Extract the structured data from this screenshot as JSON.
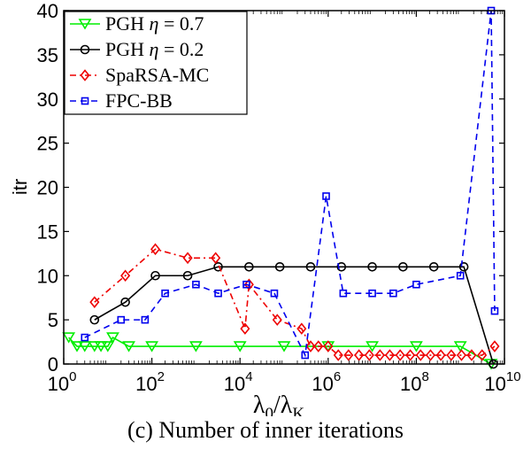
{
  "caption": "(c) Number of inner iterations",
  "chart_data": {
    "type": "line",
    "title": "",
    "xlabel": "λ0/λK",
    "ylabel": "itr",
    "xscale": "log",
    "xlim": [
      1,
      10000000000
    ],
    "ylim": [
      0,
      40
    ],
    "x_ticks": [
      {
        "value": 1,
        "base": "10",
        "exp": "0"
      },
      {
        "value": 100,
        "base": "10",
        "exp": "2"
      },
      {
        "value": 10000,
        "base": "10",
        "exp": "4"
      },
      {
        "value": 1000000,
        "base": "10",
        "exp": "6"
      },
      {
        "value": 100000000,
        "base": "10",
        "exp": "8"
      },
      {
        "value": 10000000000,
        "base": "10",
        "exp": "10"
      }
    ],
    "y_ticks": [
      0,
      5,
      10,
      15,
      20,
      25,
      30,
      35,
      40
    ],
    "grid": false,
    "legend_position": "top-left",
    "series": [
      {
        "name": "PGH η = 0.7",
        "color": "#00ee00",
        "marker": "triangle-down",
        "dash": "solid",
        "x": [
          1.3,
          2,
          3,
          5,
          7,
          10,
          13,
          30,
          100,
          1000,
          10000,
          100000,
          1000000,
          10000000,
          100000000,
          1000000000,
          5000000000
        ],
        "y": [
          3,
          2,
          2,
          2,
          2,
          2,
          3,
          2,
          2,
          2,
          2,
          2,
          2,
          2,
          2,
          2,
          0
        ]
      },
      {
        "name": "PGH η = 0.2",
        "color": "#000000",
        "marker": "circle",
        "dash": "solid",
        "x": [
          5,
          25,
          120,
          650,
          3200,
          16000,
          80000,
          400000,
          2000000,
          10000000,
          50000000,
          250000000,
          1200000000,
          5600000000
        ],
        "y": [
          5,
          7,
          10,
          10,
          11,
          11,
          11,
          11,
          11,
          11,
          11,
          11,
          11,
          0
        ]
      },
      {
        "name": "SpaRSA-MC",
        "color": "#ee0000",
        "marker": "diamond",
        "dash": "dashdot",
        "x": [
          5,
          25,
          120,
          650,
          2800,
          13000,
          16000,
          70000,
          250000,
          400000,
          600000,
          1000000,
          1700000,
          2900000,
          5000000,
          8600000,
          15000000,
          25000000,
          43000000,
          73000000,
          125000000,
          210000000,
          360000000,
          620000000,
          1060000000,
          1800000000,
          3100000000,
          6000000000
        ],
        "y": [
          7,
          10,
          13,
          12,
          12,
          4,
          9,
          5,
          4,
          2,
          2,
          2,
          1,
          1,
          1,
          1,
          1,
          1,
          1,
          1,
          1,
          1,
          1,
          1,
          1,
          1,
          1,
          2
        ]
      },
      {
        "name": "FPC-BB",
        "color": "#0000ee",
        "marker": "square",
        "dash": "dashed",
        "x": [
          3,
          20,
          70,
          200,
          1000,
          3200,
          14000,
          60000,
          300000,
          900000,
          2200000,
          10000000,
          30000000,
          100000000,
          1000000000,
          5000000000,
          6000000000
        ],
        "y": [
          3,
          5,
          5,
          8,
          9,
          8,
          9,
          8,
          1,
          19,
          8,
          8,
          8,
          9,
          10,
          40,
          6
        ]
      }
    ]
  }
}
